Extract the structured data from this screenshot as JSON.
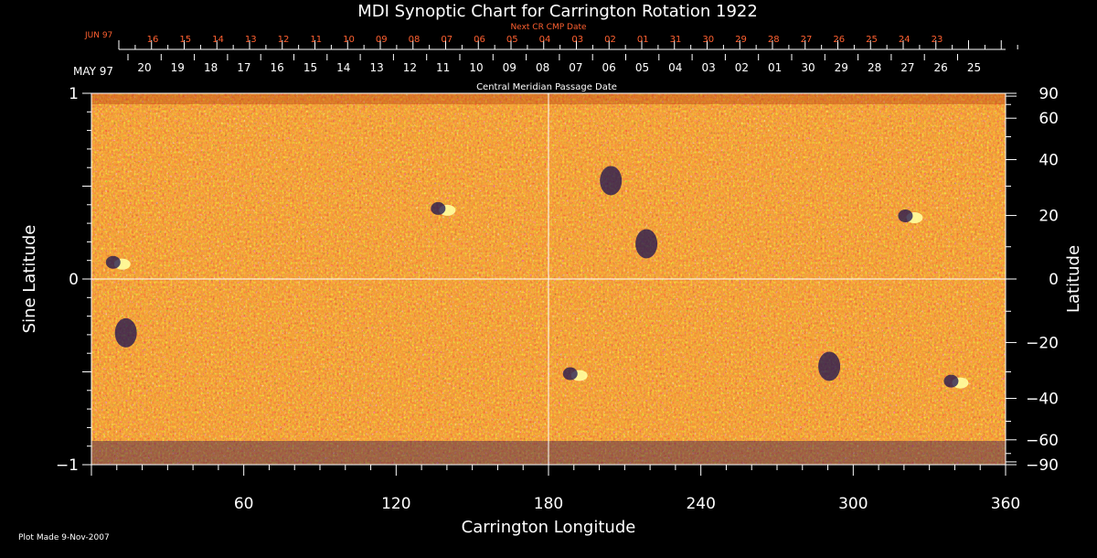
{
  "chart_data": {
    "type": "heatmap",
    "title": "MDI Synoptic Chart for Carrington Rotation 1922",
    "top_axis_label": "Next CR CMP Date",
    "top_axis_month": "JUN 97",
    "top_axis_ticks": [
      "16",
      "15",
      "14",
      "13",
      "12",
      "11",
      "10",
      "09",
      "08",
      "07",
      "06",
      "05",
      "04",
      "03",
      "02",
      "01",
      "31",
      "30",
      "29",
      "28",
      "27",
      "26",
      "25",
      "24",
      "23"
    ],
    "mid_axis_label": "Central Meridian Passage Date",
    "mid_axis_month": "MAY 97",
    "mid_axis_ticks": [
      "20",
      "19",
      "18",
      "17",
      "16",
      "15",
      "14",
      "13",
      "12",
      "11",
      "10",
      "09",
      "08",
      "07",
      "06",
      "05",
      "04",
      "03",
      "02",
      "01",
      "30",
      "29",
      "28",
      "27",
      "26",
      "25"
    ],
    "xlabel": "Carrington Longitude",
    "xlim": [
      0,
      360
    ],
    "xticks": [
      "60",
      "120",
      "180",
      "240",
      "300",
      "360"
    ],
    "ylabel_left": "Sine Latitude",
    "ylim": [
      -1,
      1
    ],
    "yticks_left": [
      "1",
      "0",
      "−1"
    ],
    "ylabel_right": "Latitude",
    "yticks_right": [
      "90",
      "60",
      "40",
      "20",
      "0",
      "−20",
      "−40",
      "−60",
      "−90"
    ],
    "yticks_right_values": [
      90,
      60,
      40,
      20,
      0,
      -20,
      -40,
      -60,
      -90
    ],
    "grid": "crosshair at longitude 180, sine latitude 0",
    "colors": {
      "background": "#e05a10",
      "positive": "#ffffa0",
      "negative": "#1a1050",
      "text_top": "#ff6030"
    },
    "features": [
      {
        "lon": 10,
        "sinlat": 0.08,
        "polarity": "mixed"
      },
      {
        "lon": 138,
        "sinlat": 0.37,
        "polarity": "mixed"
      },
      {
        "lon": 206,
        "sinlat": 0.52,
        "polarity": "negative"
      },
      {
        "lon": 220,
        "sinlat": 0.18,
        "polarity": "negative"
      },
      {
        "lon": 322,
        "sinlat": 0.33,
        "polarity": "mixed"
      },
      {
        "lon": 190,
        "sinlat": -0.52,
        "polarity": "mixed"
      },
      {
        "lon": 292,
        "sinlat": -0.48,
        "polarity": "negative"
      },
      {
        "lon": 340,
        "sinlat": -0.56,
        "polarity": "mixed"
      },
      {
        "lon": 15,
        "sinlat": -0.3,
        "polarity": "negative"
      }
    ]
  },
  "footer": {
    "plot_made": "Plot Made  9-Nov-2007"
  }
}
